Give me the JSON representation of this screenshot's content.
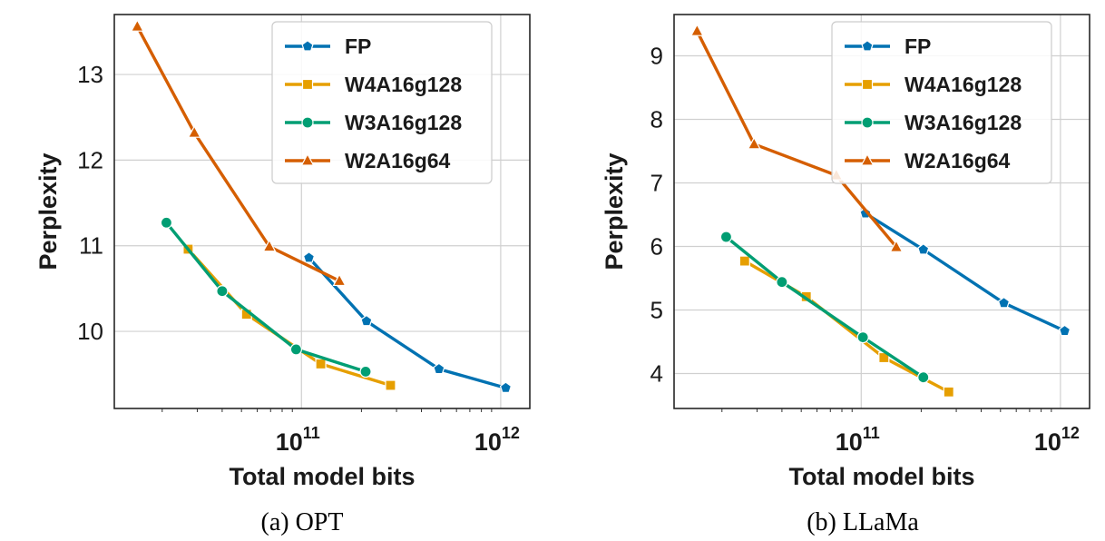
{
  "chart_data": [
    {
      "type": "line",
      "caption": "(a) OPT",
      "xlabel": "Total model bits",
      "ylabel": "Perplexity",
      "xscale": "log",
      "xlim": [
        11500000000.0,
        1400000000000.0
      ],
      "ylim": [
        9.1,
        13.7
      ],
      "yticks": [
        10,
        11,
        12,
        13
      ],
      "xticks": [
        {
          "base": "10",
          "exp": "11",
          "value": 100000000000.0
        },
        {
          "base": "10",
          "exp": "12",
          "value": 1000000000000.0
        }
      ],
      "grid": true,
      "legend_position": "top-right",
      "series": [
        {
          "name": "FP",
          "color": "#0072B2",
          "marker": "pentagon",
          "x": [
            109000000000.0,
            212000000000.0,
            490000000000.0,
            1060000000000.0
          ],
          "y": [
            10.86,
            10.12,
            9.56,
            9.34
          ]
        },
        {
          "name": "W4A16g128",
          "color": "#E69F00",
          "marker": "square",
          "x": [
            27000000000.0,
            53000000000.0,
            125000000000.0,
            280000000000.0
          ],
          "y": [
            10.96,
            10.2,
            9.62,
            9.37
          ]
        },
        {
          "name": "W3A16g128",
          "color": "#009E73",
          "marker": "circle",
          "x": [
            21000000000.0,
            40000000000.0,
            94000000000.0,
            210000000000.0
          ],
          "y": [
            11.27,
            10.47,
            9.79,
            9.53
          ]
        },
        {
          "name": "W2A16g64",
          "color": "#D55E00",
          "marker": "triangle",
          "x": [
            15000000000.0,
            29000000000.0,
            69000000000.0,
            155000000000.0
          ],
          "y": [
            13.56,
            12.32,
            10.99,
            10.59
          ]
        }
      ]
    },
    {
      "type": "line",
      "caption": "(b) LLaMa",
      "xlabel": "Total model bits",
      "ylabel": "Perplexity",
      "xscale": "log",
      "xlim": [
        11500000000.0,
        1400000000000.0
      ],
      "ylim": [
        3.45,
        9.65
      ],
      "yticks": [
        4,
        5,
        6,
        7,
        8,
        9
      ],
      "xticks": [
        {
          "base": "10",
          "exp": "11",
          "value": 100000000000.0
        },
        {
          "base": "10",
          "exp": "12",
          "value": 1000000000000.0
        }
      ],
      "grid": true,
      "legend_position": "top-right",
      "series": [
        {
          "name": "FP",
          "color": "#0072B2",
          "marker": "pentagon",
          "x": [
            105000000000.0,
            205000000000.0,
            520000000000.0,
            1050000000000.0
          ],
          "y": [
            6.52,
            5.95,
            5.11,
            4.67
          ]
        },
        {
          "name": "W4A16g128",
          "color": "#E69F00",
          "marker": "square",
          "x": [
            26000000000.0,
            53000000000.0,
            130000000000.0,
            275000000000.0
          ],
          "y": [
            5.77,
            5.21,
            4.25,
            3.71
          ]
        },
        {
          "name": "W3A16g128",
          "color": "#009E73",
          "marker": "circle",
          "x": [
            21000000000.0,
            40000000000.0,
            102000000000.0,
            205000000000.0
          ],
          "y": [
            6.15,
            5.44,
            4.57,
            3.94
          ]
        },
        {
          "name": "W2A16g64",
          "color": "#D55E00",
          "marker": "triangle",
          "x": [
            15000000000.0,
            29000000000.0,
            75000000000.0,
            150000000000.0
          ],
          "y": [
            9.39,
            7.61,
            7.12,
            5.99
          ]
        }
      ]
    }
  ]
}
